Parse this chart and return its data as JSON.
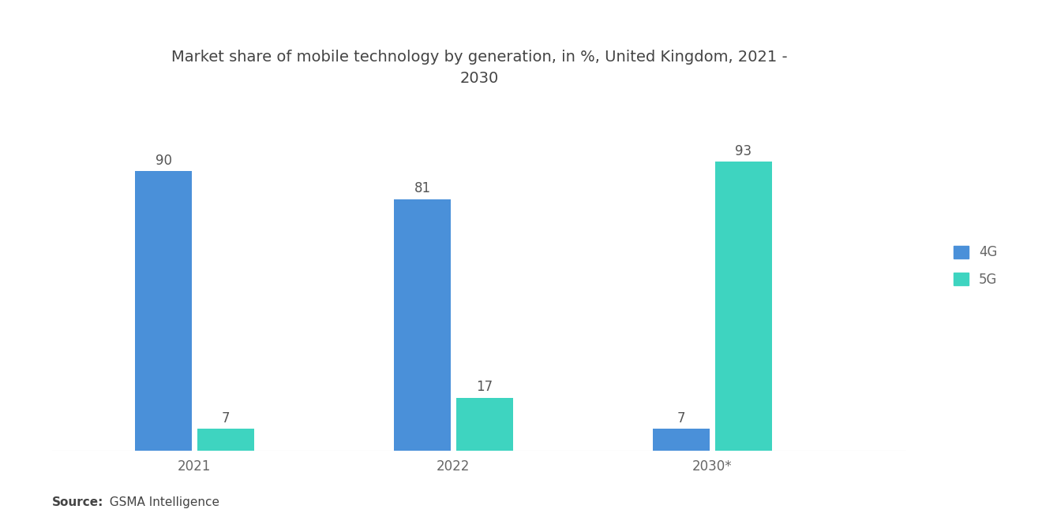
{
  "title": "Market share of mobile technology by generation, in %, United Kingdom, 2021 -\n2030",
  "years": [
    "2021",
    "2022",
    "2030*"
  ],
  "4g_values": [
    90,
    81,
    7
  ],
  "5g_values": [
    7,
    17,
    93
  ],
  "4g_color": "#4A90D9",
  "5g_color": "#3ED4C0",
  "bg_color": "#FFFFFF",
  "bar_width": 0.22,
  "ylim": [
    0,
    108
  ],
  "legend_labels": [
    "4G",
    "5G"
  ],
  "source_bold": "Source:",
  "source_rest": "  GSMA Intelligence",
  "title_fontsize": 14,
  "label_fontsize": 12,
  "tick_fontsize": 12,
  "source_fontsize": 11,
  "legend_fontsize": 12
}
